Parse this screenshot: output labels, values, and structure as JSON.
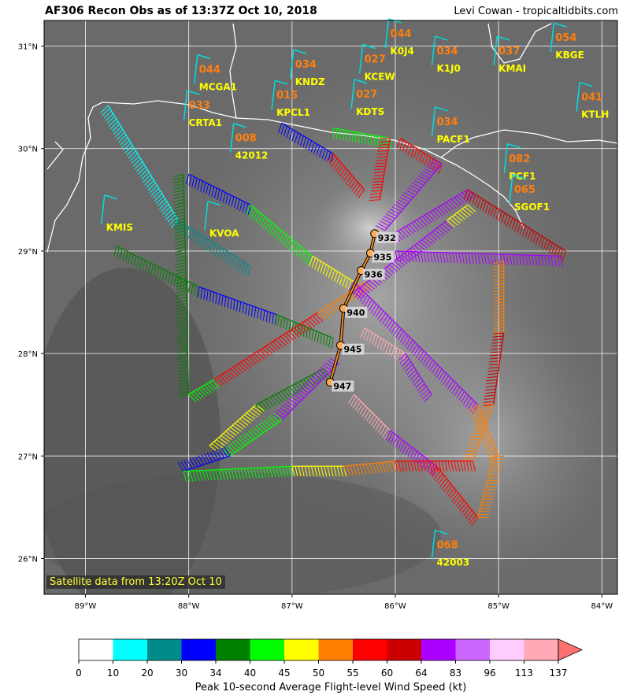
{
  "header": {
    "title": "AF306 Recon Obs as of 13:37Z Oct 10, 2018",
    "credit": "Levi Cowan - tropicaltidbits.com"
  },
  "map": {
    "lon_range": [
      -89.4,
      -83.85
    ],
    "lat_range": [
      25.65,
      31.25
    ],
    "lon_ticks": [
      -89,
      -88,
      -87,
      -86,
      -85,
      -84
    ],
    "lon_tick_labels": [
      "89°W",
      "88°W",
      "87°W",
      "86°W",
      "85°W",
      "84°W"
    ],
    "lat_ticks": [
      26,
      27,
      28,
      29,
      30,
      31
    ],
    "lat_tick_labels": [
      "26°N",
      "27°N",
      "28°N",
      "29°N",
      "30°N",
      "31°N"
    ],
    "satellite_note": "Satellite data from 13:20Z Oct 10",
    "stations": [
      {
        "id": "K0J4",
        "value": "044",
        "lon": -86.05,
        "lat": 30.92
      },
      {
        "id": "KBGE",
        "value": "054",
        "lon": -84.45,
        "lat": 30.88
      },
      {
        "id": "K1J0",
        "value": "034",
        "lon": -85.6,
        "lat": 30.75
      },
      {
        "id": "KMAI",
        "value": "037",
        "lon": -85.0,
        "lat": 30.75
      },
      {
        "id": "KCEW",
        "value": "027",
        "lon": -86.3,
        "lat": 30.67
      },
      {
        "id": "KNDZ",
        "value": "034",
        "lon": -86.97,
        "lat": 30.62
      },
      {
        "id": "MCGA1",
        "value": "044",
        "lon": -87.9,
        "lat": 30.57
      },
      {
        "id": "KDTS",
        "value": "027",
        "lon": -86.38,
        "lat": 30.33
      },
      {
        "id": "KPCL1",
        "value": "015",
        "lon": -87.15,
        "lat": 30.32
      },
      {
        "id": "CRTA1",
        "value": "033",
        "lon": -88.0,
        "lat": 30.22
      },
      {
        "id": "KTLH",
        "value": "041",
        "lon": -84.2,
        "lat": 30.3
      },
      {
        "id": "PACF1",
        "value": "034",
        "lon": -85.6,
        "lat": 30.06
      },
      {
        "id": "42012",
        "value": "008",
        "lon": -87.55,
        "lat": 29.9
      },
      {
        "id": "PCF1",
        "value": "082",
        "lon": -84.9,
        "lat": 29.7
      },
      {
        "id": "SGOF1",
        "value": "065",
        "lon": -84.85,
        "lat": 29.4
      },
      {
        "id": "KMIS",
        "value": "",
        "lon": -88.8,
        "lat": 29.2
      },
      {
        "id": "KVOA",
        "value": "",
        "lon": -87.8,
        "lat": 29.14
      },
      {
        "id": "42003",
        "value": "068",
        "lon": -85.6,
        "lat": 25.93
      }
    ],
    "center_fixes": [
      {
        "pressure": "932",
        "lon": -86.2,
        "lat": 29.17
      },
      {
        "pressure": "935",
        "lon": -86.24,
        "lat": 28.98
      },
      {
        "pressure": "936",
        "lon": -86.33,
        "lat": 28.81
      },
      {
        "pressure": "940",
        "lon": -86.5,
        "lat": 28.44
      },
      {
        "pressure": "945",
        "lon": -86.53,
        "lat": 28.08
      },
      {
        "pressure": "947",
        "lon": -86.63,
        "lat": 27.72
      }
    ],
    "flight_legs": [
      {
        "from": [
          -88.78,
          30.42
        ],
        "to": [
          -88.1,
          29.3
        ],
        "color": "#00ffff"
      },
      {
        "from": [
          -88.1,
          29.3
        ],
        "to": [
          -87.4,
          28.85
        ],
        "color": "#008b8b"
      },
      {
        "from": [
          -88.7,
          29.05
        ],
        "to": [
          -87.9,
          28.65
        ],
        "color": "#008000"
      },
      {
        "from": [
          -87.9,
          28.65
        ],
        "to": [
          -87.15,
          28.38
        ],
        "color": "#0000ff"
      },
      {
        "from": [
          -87.15,
          28.38
        ],
        "to": [
          -86.6,
          28.15
        ],
        "color": "#008000"
      },
      {
        "from": [
          -88.0,
          29.75
        ],
        "to": [
          -87.4,
          29.45
        ],
        "color": "#0000ff"
      },
      {
        "from": [
          -87.4,
          29.45
        ],
        "to": [
          -86.8,
          28.95
        ],
        "color": "#00ff00"
      },
      {
        "from": [
          -86.8,
          28.95
        ],
        "to": [
          -86.4,
          28.7
        ],
        "color": "#ffff00"
      },
      {
        "from": [
          -88.05,
          29.75
        ],
        "to": [
          -88.0,
          27.6
        ],
        "color": "#008000"
      },
      {
        "from": [
          -88.0,
          27.6
        ],
        "to": [
          -87.75,
          27.75
        ],
        "color": "#00ff00"
      },
      {
        "from": [
          -87.75,
          27.75
        ],
        "to": [
          -86.75,
          28.4
        ],
        "color": "#ff0000"
      },
      {
        "from": [
          -86.75,
          28.4
        ],
        "to": [
          -86.3,
          28.7
        ],
        "color": "#ff7f00"
      },
      {
        "from": [
          -87.8,
          27.1
        ],
        "to": [
          -87.35,
          27.5
        ],
        "color": "#ffff00"
      },
      {
        "from": [
          -87.35,
          27.5
        ],
        "to": [
          -86.7,
          27.85
        ],
        "color": "#008000"
      },
      {
        "from": [
          -87.1,
          30.25
        ],
        "to": [
          -86.6,
          29.95
        ],
        "color": "#0000ff"
      },
      {
        "from": [
          -86.6,
          29.95
        ],
        "to": [
          -86.3,
          29.6
        ],
        "color": "#ff0000"
      },
      {
        "from": [
          -86.6,
          30.2
        ],
        "to": [
          -86.05,
          30.1
        ],
        "color": "#00ff00"
      },
      {
        "from": [
          -86.05,
          30.1
        ],
        "to": [
          -86.15,
          29.5
        ],
        "color": "#ff0000"
      },
      {
        "from": [
          -85.95,
          30.1
        ],
        "to": [
          -85.55,
          29.85
        ],
        "color": "#ff0000"
      },
      {
        "from": [
          -85.55,
          29.85
        ],
        "to": [
          -86.1,
          29.2
        ],
        "color": "#aa00ff"
      },
      {
        "from": [
          -86.05,
          29.15
        ],
        "to": [
          -85.3,
          29.6
        ],
        "color": "#aa00ff"
      },
      {
        "from": [
          -85.3,
          29.6
        ],
        "to": [
          -84.35,
          29.0
        ],
        "color": "#cc0000"
      },
      {
        "from": [
          -86.0,
          29.0
        ],
        "to": [
          -84.4,
          28.95
        ],
        "color": "#aa00ff"
      },
      {
        "from": [
          -84.95,
          28.9
        ],
        "to": [
          -84.95,
          28.2
        ],
        "color": "#ff7f00"
      },
      {
        "from": [
          -84.95,
          28.2
        ],
        "to": [
          -85.05,
          27.5
        ],
        "color": "#cc0000"
      },
      {
        "from": [
          -85.05,
          27.5
        ],
        "to": [
          -85.25,
          26.95
        ],
        "color": "#ff7f00"
      },
      {
        "from": [
          -86.4,
          28.7
        ],
        "to": [
          -85.2,
          27.5
        ],
        "color": "#aa00ff"
      },
      {
        "from": [
          -85.2,
          27.5
        ],
        "to": [
          -85.0,
          27.0
        ],
        "color": "#ff7f00"
      },
      {
        "from": [
          -86.4,
          28.6
        ],
        "to": [
          -85.5,
          29.3
        ],
        "color": "#aa00ff"
      },
      {
        "from": [
          -85.5,
          29.3
        ],
        "to": [
          -85.3,
          29.45
        ],
        "color": "#ffff00"
      },
      {
        "from": [
          -86.3,
          28.25
        ],
        "to": [
          -85.9,
          28.0
        ],
        "color": "#ffaab4"
      },
      {
        "from": [
          -85.9,
          28.0
        ],
        "to": [
          -85.65,
          27.6
        ],
        "color": "#aa00ff"
      },
      {
        "from": [
          -86.55,
          27.9
        ],
        "to": [
          -87.1,
          27.35
        ],
        "color": "#aa00ff"
      },
      {
        "from": [
          -87.1,
          27.35
        ],
        "to": [
          -87.6,
          27.0
        ],
        "color": "#00ff00"
      },
      {
        "from": [
          -87.6,
          27.0
        ],
        "to": [
          -88.05,
          26.85
        ],
        "color": "#0000ff"
      },
      {
        "from": [
          -88.05,
          26.85
        ],
        "to": [
          -87.0,
          26.9
        ],
        "color": "#00ff00"
      },
      {
        "from": [
          -87.0,
          26.9
        ],
        "to": [
          -86.5,
          26.9
        ],
        "color": "#ffff00"
      },
      {
        "from": [
          -86.5,
          26.9
        ],
        "to": [
          -86.0,
          26.95
        ],
        "color": "#ff7f00"
      },
      {
        "from": [
          -86.4,
          27.6
        ],
        "to": [
          -86.05,
          27.25
        ],
        "color": "#ffaab4"
      },
      {
        "from": [
          -86.05,
          27.25
        ],
        "to": [
          -85.6,
          26.9
        ],
        "color": "#aa00ff"
      },
      {
        "from": [
          -85.6,
          26.9
        ],
        "to": [
          -85.2,
          26.4
        ],
        "color": "#ff0000"
      },
      {
        "from": [
          -85.2,
          26.4
        ],
        "to": [
          -85.05,
          27.0
        ],
        "color": "#ff7f00"
      },
      {
        "from": [
          -86.0,
          26.95
        ],
        "to": [
          -85.25,
          26.95
        ],
        "color": "#ff0000"
      }
    ]
  },
  "colorbar": {
    "ticks": [
      "0",
      "10",
      "20",
      "30",
      "34",
      "40",
      "45",
      "50",
      "55",
      "60",
      "64",
      "83",
      "96",
      "113",
      "137"
    ],
    "colors": [
      "#ffffff",
      "#00ffff",
      "#008b8b",
      "#0000ff",
      "#008000",
      "#00ff00",
      "#ffff00",
      "#ff7f00",
      "#ff0000",
      "#cc0000",
      "#aa00ff",
      "#cc66ff",
      "#ffccff",
      "#ffaab4"
    ],
    "extend_color": "#ff7070",
    "label": "Peak 10-second Average Flight-level Wind Speed (kt)"
  }
}
